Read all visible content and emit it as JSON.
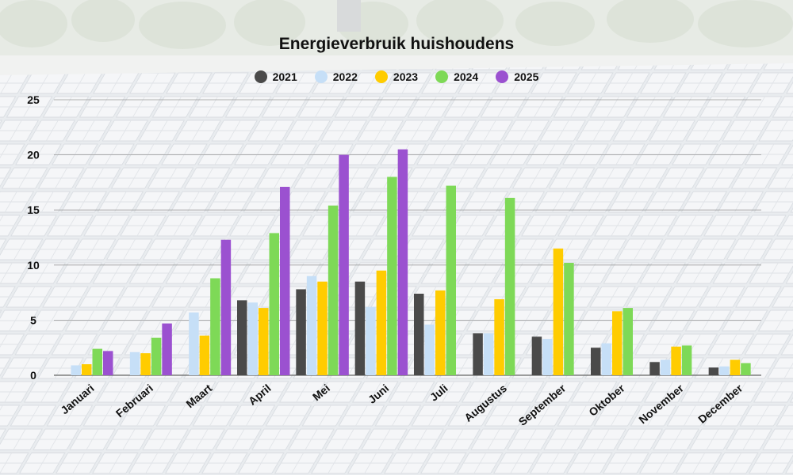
{
  "chart_data": {
    "type": "bar",
    "title": "Energieverbruik huishoudens",
    "xlabel": "",
    "ylabel": "",
    "ylim": [
      0,
      25
    ],
    "yticks": [
      0,
      5,
      10,
      15,
      20,
      25
    ],
    "grid": true,
    "legend_position": "top-center",
    "categories": [
      "Januari",
      "Februari",
      "Maart",
      "April",
      "Mei",
      "Juni",
      "Juli",
      "Augustus",
      "September",
      "Oktober",
      "November",
      "December"
    ],
    "series": [
      {
        "name": "2021",
        "color": "#4a4a4a",
        "values": [
          null,
          null,
          null,
          6.8,
          7.8,
          8.5,
          7.4,
          3.8,
          3.5,
          2.5,
          1.2,
          0.7
        ]
      },
      {
        "name": "2022",
        "color": "#c6dff7",
        "values": [
          0.9,
          2.1,
          5.7,
          6.6,
          9.0,
          6.2,
          4.6,
          3.8,
          3.3,
          2.9,
          1.4,
          0.8
        ]
      },
      {
        "name": "2023",
        "color": "#ffcc00",
        "values": [
          1.0,
          2.0,
          3.6,
          6.1,
          8.5,
          9.5,
          7.7,
          6.9,
          11.5,
          5.8,
          2.6,
          1.4
        ]
      },
      {
        "name": "2024",
        "color": "#7ed957",
        "values": [
          2.4,
          3.4,
          8.8,
          12.9,
          15.4,
          18.0,
          17.2,
          16.1,
          10.2,
          6.1,
          2.7,
          1.1
        ]
      },
      {
        "name": "2025",
        "color": "#9b51d0",
        "values": [
          2.2,
          4.7,
          12.3,
          17.1,
          20.0,
          20.5,
          null,
          null,
          null,
          null,
          null,
          null
        ]
      }
    ]
  }
}
